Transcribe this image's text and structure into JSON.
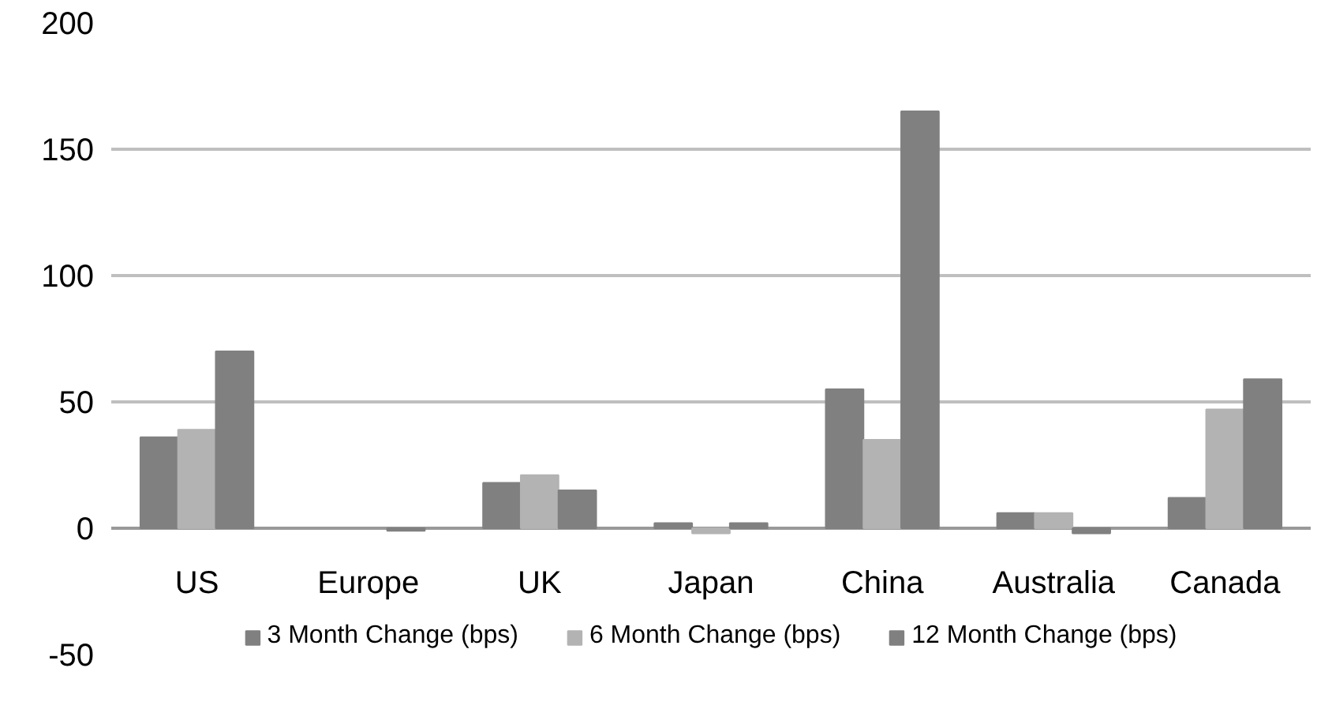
{
  "chart_data": {
    "type": "bar",
    "categories": [
      "US",
      "Europe",
      "UK",
      "Japan",
      "China",
      "Australia",
      "Canada"
    ],
    "series": [
      {
        "name": "3 Month Change (bps)",
        "color": "#808080",
        "values": [
          36,
          null,
          18,
          2,
          55,
          6,
          12
        ]
      },
      {
        "name": "6 Month Change (bps)",
        "color": "#b3b3b3",
        "values": [
          39,
          null,
          21,
          -2,
          35,
          6,
          47
        ]
      },
      {
        "name": "12 Month Change (bps)",
        "color": "#808080",
        "values": [
          70,
          -1,
          15,
          2,
          165,
          -2,
          59
        ]
      }
    ],
    "ylim": [
      -50,
      200
    ],
    "yticks": [
      -50,
      0,
      50,
      100,
      150,
      200
    ],
    "grid": "y",
    "legend": "bottom"
  }
}
